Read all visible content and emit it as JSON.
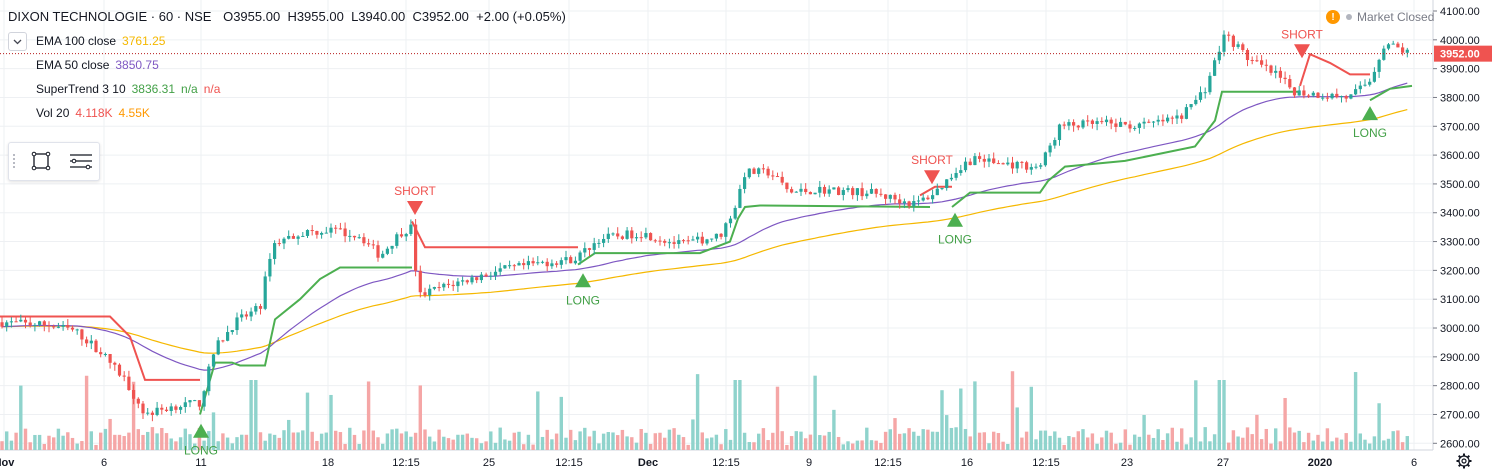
{
  "symbol": {
    "name": "DIXON TECHNOLOGIE · 60 · NSE",
    "open": "O3955.00",
    "high": "H3955.00",
    "low": "L3940.00",
    "close": "C3952.00",
    "change": "+2.00 (+0.05%)"
  },
  "indicators": [
    {
      "label": "EMA 100 close",
      "values": [
        "3761.25"
      ],
      "color": "#f5b800"
    },
    {
      "label": "EMA 50 close",
      "values": [
        "3850.75"
      ],
      "color": "#7e57c2"
    },
    {
      "label": "SuperTrend 3 10",
      "values": [
        "3836.31",
        "n/a",
        "n/a"
      ],
      "color": "#43a047"
    },
    {
      "label": "Vol 20",
      "values": [
        "4.118K",
        "4.55K"
      ],
      "color": "#ef5350",
      "color2": "#ff9800"
    }
  ],
  "status": {
    "market": "Market Closed",
    "warning_icon": "!"
  },
  "icons": [
    "chevron-down-icon",
    "rectangle-icon",
    "list-icon",
    "warning-icon",
    "gear-icon"
  ],
  "colors": {
    "up": "#26a69a",
    "down": "#ef5350",
    "ema100": "#f5b800",
    "ema50": "#7e57c2",
    "supertrend_up": "#4caf50",
    "supertrend_down": "#ef5350",
    "vol_up": "#8fd3cc",
    "vol_down": "#f5a6a6",
    "grid": "#eef0f3",
    "price_line": "#b71c1c"
  },
  "price_axis": {
    "labels": [
      "4100.00",
      "4000.00",
      "3900.00",
      "3800.00",
      "3700.00",
      "3600.00",
      "3500.00",
      "3400.00",
      "3300.00",
      "3200.00",
      "3100.00",
      "3000.00",
      "2900.00",
      "2800.00",
      "2700.00",
      "2600.00"
    ],
    "current": "3952.00"
  },
  "time_axis": {
    "labels": [
      "Nov",
      "6",
      "11",
      "18",
      "12:15",
      "25",
      "12:15",
      "Dec",
      "12:15",
      "9",
      "12:15",
      "16",
      "12:15",
      "23",
      "27",
      "2020",
      "6"
    ]
  },
  "signals": [
    {
      "type": "LONG",
      "text": "LONG",
      "price": 2668
    },
    {
      "type": "SHORT",
      "text": "SHORT",
      "price": 3392
    },
    {
      "type": "LONG",
      "text": "LONG",
      "price": 3190
    },
    {
      "type": "SHORT",
      "text": "SHORT",
      "price": 3499
    },
    {
      "type": "LONG",
      "text": "LONG",
      "price": 3400
    },
    {
      "type": "SHORT",
      "text": "SHORT",
      "price": 3936
    },
    {
      "type": "LONG",
      "text": "LONG",
      "price": 3770
    }
  ]
}
